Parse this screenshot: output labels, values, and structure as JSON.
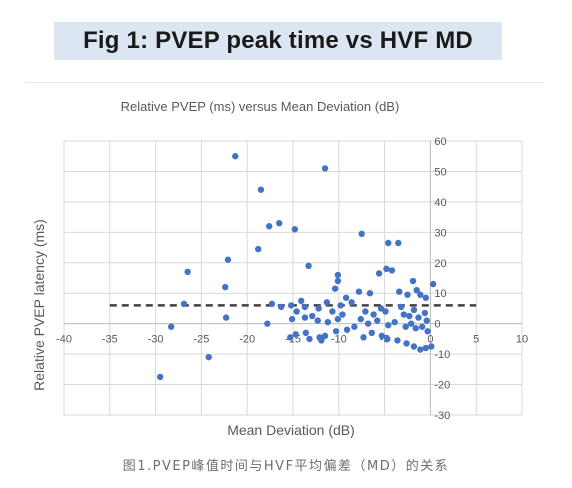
{
  "banner": {
    "title": "Fig 1: PVEP peak time vs HVF MD"
  },
  "caption": "图1.PVEP峰值时间与HVF平均偏差（MD）的关系",
  "chart_data": {
    "type": "scatter",
    "title": "Relative PVEP (ms) versus Mean Deviation (dB)",
    "xlabel": "Mean Deviation (dB)",
    "ylabel": "Relative PVEP latency (ms)",
    "xlim": [
      -40,
      10
    ],
    "ylim": [
      -30,
      60
    ],
    "xticks": [
      -40,
      -35,
      -30,
      -25,
      -20,
      -15,
      -10,
      -5,
      0,
      5,
      10
    ],
    "yticks": [
      -30,
      -20,
      -10,
      0,
      10,
      20,
      30,
      40,
      50,
      60
    ],
    "grid": true,
    "point_color": "#4472c4",
    "reference_line": {
      "y": 6,
      "x_range": [
        -35,
        5
      ],
      "style": "dashed",
      "color": "#404040"
    },
    "points": [
      [
        -21.3,
        55
      ],
      [
        -11.5,
        51
      ],
      [
        -18.5,
        44
      ],
      [
        -17.6,
        32
      ],
      [
        -16.5,
        33
      ],
      [
        -14.8,
        31
      ],
      [
        -18.8,
        24.5
      ],
      [
        -22.1,
        21
      ],
      [
        -26.5,
        17
      ],
      [
        -7.5,
        29.5
      ],
      [
        -4.6,
        26.5
      ],
      [
        -3.5,
        26.5
      ],
      [
        -13.3,
        19
      ],
      [
        -10.1,
        16
      ],
      [
        -4.8,
        18
      ],
      [
        -4.2,
        17.5
      ],
      [
        -5.6,
        16.5
      ],
      [
        -1.9,
        14
      ],
      [
        0.3,
        13
      ],
      [
        -22.4,
        12
      ],
      [
        -10.1,
        14
      ],
      [
        -10.4,
        11.5
      ],
      [
        -7.8,
        10.5
      ],
      [
        -6.6,
        10
      ],
      [
        -3.4,
        10.5
      ],
      [
        -2.5,
        9.5
      ],
      [
        -1.5,
        11
      ],
      [
        -1.1,
        9.5
      ],
      [
        -0.5,
        8.5
      ],
      [
        -9.2,
        8.5
      ],
      [
        -8.6,
        7
      ],
      [
        -9.8,
        6
      ],
      [
        -14.1,
        7.5
      ],
      [
        -11.3,
        7
      ],
      [
        -12.2,
        5
      ],
      [
        -13.7,
        5.5
      ],
      [
        -15.2,
        6
      ],
      [
        -16.3,
        5.5
      ],
      [
        -17.3,
        6.5
      ],
      [
        -26.9,
        6.5
      ],
      [
        -17.8,
        0
      ],
      [
        -22.3,
        2
      ],
      [
        -28.3,
        -1
      ],
      [
        -24.2,
        -11
      ],
      [
        -29.5,
        -17.5
      ],
      [
        -10.7,
        4
      ],
      [
        -9.6,
        3
      ],
      [
        -10.1,
        1.5
      ],
      [
        -11.2,
        0.5
      ],
      [
        -12.3,
        1
      ],
      [
        -12.9,
        2.5
      ],
      [
        -13.7,
        2
      ],
      [
        -14.6,
        4
      ],
      [
        -15.1,
        1.5
      ],
      [
        -7.1,
        4
      ],
      [
        -6.2,
        3
      ],
      [
        -5.4,
        5
      ],
      [
        -4.9,
        4
      ],
      [
        -3.2,
        5.5
      ],
      [
        -2.9,
        3
      ],
      [
        -2.3,
        2.5
      ],
      [
        -1.8,
        4.5
      ],
      [
        -1.3,
        2
      ],
      [
        -0.6,
        3.5
      ],
      [
        -0.4,
        1
      ],
      [
        -7.6,
        1.5
      ],
      [
        -6.8,
        0
      ],
      [
        -5.8,
        1
      ],
      [
        -4.6,
        -0.5
      ],
      [
        -3.9,
        0.5
      ],
      [
        -2.7,
        -1
      ],
      [
        -2.1,
        0
      ],
      [
        -1.6,
        -1.5
      ],
      [
        -0.9,
        -1
      ],
      [
        -0.3,
        -2.5
      ],
      [
        -8.3,
        -1
      ],
      [
        -9.1,
        -2
      ],
      [
        -10.3,
        -2.5
      ],
      [
        -11.5,
        -4
      ],
      [
        -12.1,
        -4.5
      ],
      [
        -13.6,
        -3
      ],
      [
        -14.7,
        -3.5
      ],
      [
        -15.3,
        -4.5
      ],
      [
        -5.3,
        -4
      ],
      [
        -4.7,
        -5
      ],
      [
        -3.6,
        -5.5
      ],
      [
        -2.6,
        -6.5
      ],
      [
        -1.8,
        -7.5
      ],
      [
        -1.1,
        -8.5
      ],
      [
        -0.5,
        -8
      ],
      [
        0.1,
        -7.5
      ],
      [
        -6.4,
        -3
      ],
      [
        -7.3,
        -4.5
      ],
      [
        -13.2,
        -5
      ],
      [
        -11.9,
        -5.5
      ]
    ]
  }
}
